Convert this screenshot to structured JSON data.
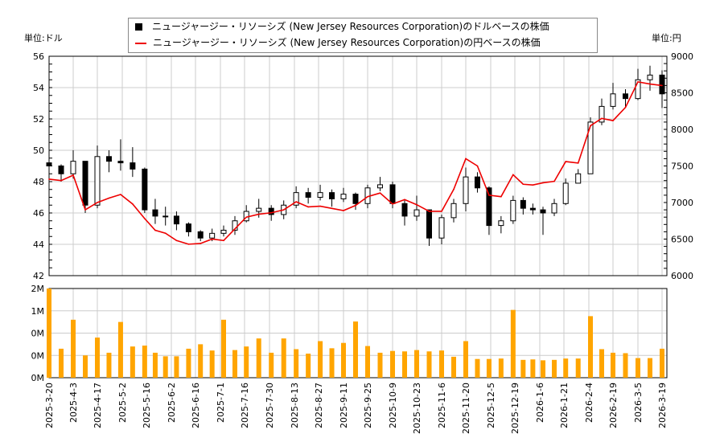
{
  "legend": {
    "usd": "ニュージャージー・リソーシズ (New Jersey Resources Corporation)のドルベースの株価",
    "jpy": "ニュージャージー・リソーシズ (New Jersey Resources Corporation)の円ベースの株価"
  },
  "units": {
    "left": "単位:ドル",
    "right": "単位:円"
  },
  "colors": {
    "usd_candle": "#000000",
    "jpy_line": "#ee0000",
    "volume": "#ffa500",
    "grid": "#cccccc"
  },
  "chart_data": {
    "type": "candlestick+line+bar",
    "grid": true,
    "legend_position": "top",
    "yleft": {
      "ticks": [
        "42",
        "44",
        "46",
        "48",
        "50",
        "52",
        "54",
        "56"
      ],
      "range": [
        42,
        56
      ]
    },
    "yright": {
      "ticks": [
        "6000",
        "6500",
        "7000",
        "7500",
        "8000",
        "8500",
        "9000"
      ],
      "range": [
        6000,
        9000
      ]
    },
    "yvolume": {
      "ticks": [
        "0M",
        "0M",
        "0M",
        "1M",
        "2M"
      ],
      "range": [
        0,
        2000000
      ]
    },
    "xticks": [
      "2025-3-20",
      "2025-4-3",
      "2025-4-17",
      "2025-5-2",
      "2025-5-16",
      "2025-6-2",
      "2025-6-16",
      "2025-7-1",
      "2025-7-16",
      "2025-7-30",
      "2025-8-13",
      "2025-8-27",
      "2025-9-11",
      "2025-9-25",
      "2025-10-9",
      "2025-10-23",
      "2025-11-6",
      "2025-11-20",
      "2025-12-5",
      "2025-12-19",
      "2026-1-6",
      "2026-1-21",
      "2026-2-4",
      "2026-2-19",
      "2026-3-5",
      "2026-3-19"
    ],
    "dates": [
      "2025-3-20",
      "2025-3-27",
      "2025-4-3",
      "2025-4-10",
      "2025-4-17",
      "2025-4-24",
      "2025-5-1",
      "2025-5-8",
      "2025-5-15",
      "2025-5-22",
      "2025-5-29",
      "2025-6-5",
      "2025-6-12",
      "2025-6-19",
      "2025-6-26",
      "2025-7-3",
      "2025-7-10",
      "2025-7-17",
      "2025-7-24",
      "2025-7-31",
      "2025-8-7",
      "2025-8-14",
      "2025-8-21",
      "2025-8-28",
      "2025-9-4",
      "2025-9-11",
      "2025-9-18",
      "2025-9-25",
      "2025-10-2",
      "2025-10-9",
      "2025-10-16",
      "2025-10-23",
      "2025-10-30",
      "2025-11-6",
      "2025-11-13",
      "2025-11-20",
      "2025-11-27",
      "2025-12-4",
      "2025-12-11",
      "2025-12-18",
      "2025-12-25",
      "2026-1-1",
      "2026-1-8",
      "2026-1-15",
      "2026-1-22",
      "2026-1-29",
      "2026-2-5",
      "2026-2-12",
      "2026-2-19",
      "2026-2-26",
      "2026-3-5",
      "2026-3-12",
      "2026-3-19"
    ],
    "usd_close": [
      49.0,
      48.5,
      49.3,
      46.5,
      49.6,
      49.3,
      49.2,
      48.8,
      46.2,
      45.8,
      45.8,
      45.3,
      44.8,
      44.4,
      44.7,
      44.9,
      45.5,
      46.1,
      46.3,
      45.9,
      46.5,
      47.3,
      47.0,
      47.3,
      46.9,
      47.2,
      46.6,
      47.6,
      47.8,
      46.6,
      45.8,
      46.2,
      44.4,
      45.7,
      46.6,
      48.3,
      47.6,
      45.2,
      45.5,
      46.8,
      46.3,
      46.2,
      46.0,
      46.6,
      47.9,
      48.5,
      51.8,
      52.8,
      53.6,
      53.3,
      54.5,
      54.8,
      53.6
    ],
    "usd_high": [
      49.4,
      49.1,
      50.0,
      48.5,
      50.3,
      50.0,
      50.7,
      50.2,
      48.9,
      46.9,
      46.4,
      46.1,
      45.4,
      44.9,
      45.0,
      45.2,
      45.8,
      46.5,
      46.9,
      46.5,
      46.8,
      47.7,
      47.6,
      47.8,
      47.5,
      47.6,
      47.3,
      47.8,
      48.3,
      48.0,
      46.8,
      47.1,
      46.2,
      45.9,
      46.9,
      48.9,
      48.6,
      47.7,
      45.8,
      47.1,
      47.0,
      46.6,
      46.4,
      46.9,
      48.2,
      48.8,
      52.1,
      53.3,
      54.3,
      53.9,
      55.2,
      55.4,
      55.1
    ],
    "usd_low": [
      48.5,
      48.0,
      48.2,
      46.0,
      46.3,
      48.6,
      48.7,
      48.3,
      46.0,
      45.3,
      45.2,
      44.9,
      44.5,
      44.2,
      44.2,
      44.5,
      44.6,
      45.4,
      45.7,
      45.5,
      45.6,
      46.3,
      46.6,
      46.8,
      46.4,
      46.7,
      46.2,
      46.3,
      47.4,
      46.3,
      45.2,
      45.5,
      43.9,
      44.0,
      45.4,
      46.1,
      47.3,
      44.6,
      44.7,
      45.3,
      45.9,
      45.9,
      44.6,
      45.8,
      46.5,
      47.9,
      48.5,
      51.6,
      52.6,
      52.7,
      53.2,
      53.8,
      52.7
    ],
    "jpy_close": [
      7319,
      7300,
      7374,
      6900,
      7000,
      7060,
      7110,
      6980,
      6780,
      6620,
      6580,
      6480,
      6430,
      6440,
      6500,
      6480,
      6640,
      6800,
      6840,
      6860,
      6900,
      7010,
      6940,
      6950,
      6920,
      6890,
      6960,
      7080,
      7130,
      6980,
      7040,
      6970,
      6880,
      6880,
      7180,
      7600,
      7500,
      7100,
      7080,
      7380,
      7250,
      7240,
      7270,
      7290,
      7560,
      7540,
      8050,
      8150,
      8120,
      8300,
      8650,
      8620,
      8600
    ],
    "volume": [
      2000000,
      650000,
      1300000,
      500000,
      900000,
      560000,
      1250000,
      700000,
      720000,
      560000,
      480000,
      480000,
      650000,
      750000,
      610000,
      1300000,
      620000,
      700000,
      880000,
      560000,
      880000,
      640000,
      540000,
      820000,
      660000,
      780000,
      1260000,
      710000,
      560000,
      600000,
      590000,
      620000,
      590000,
      610000,
      470000,
      820000,
      420000,
      420000,
      430000,
      1520000,
      400000,
      410000,
      390000,
      400000,
      430000,
      430000,
      1380000,
      640000,
      560000,
      550000,
      440000,
      440000,
      650000
    ]
  }
}
